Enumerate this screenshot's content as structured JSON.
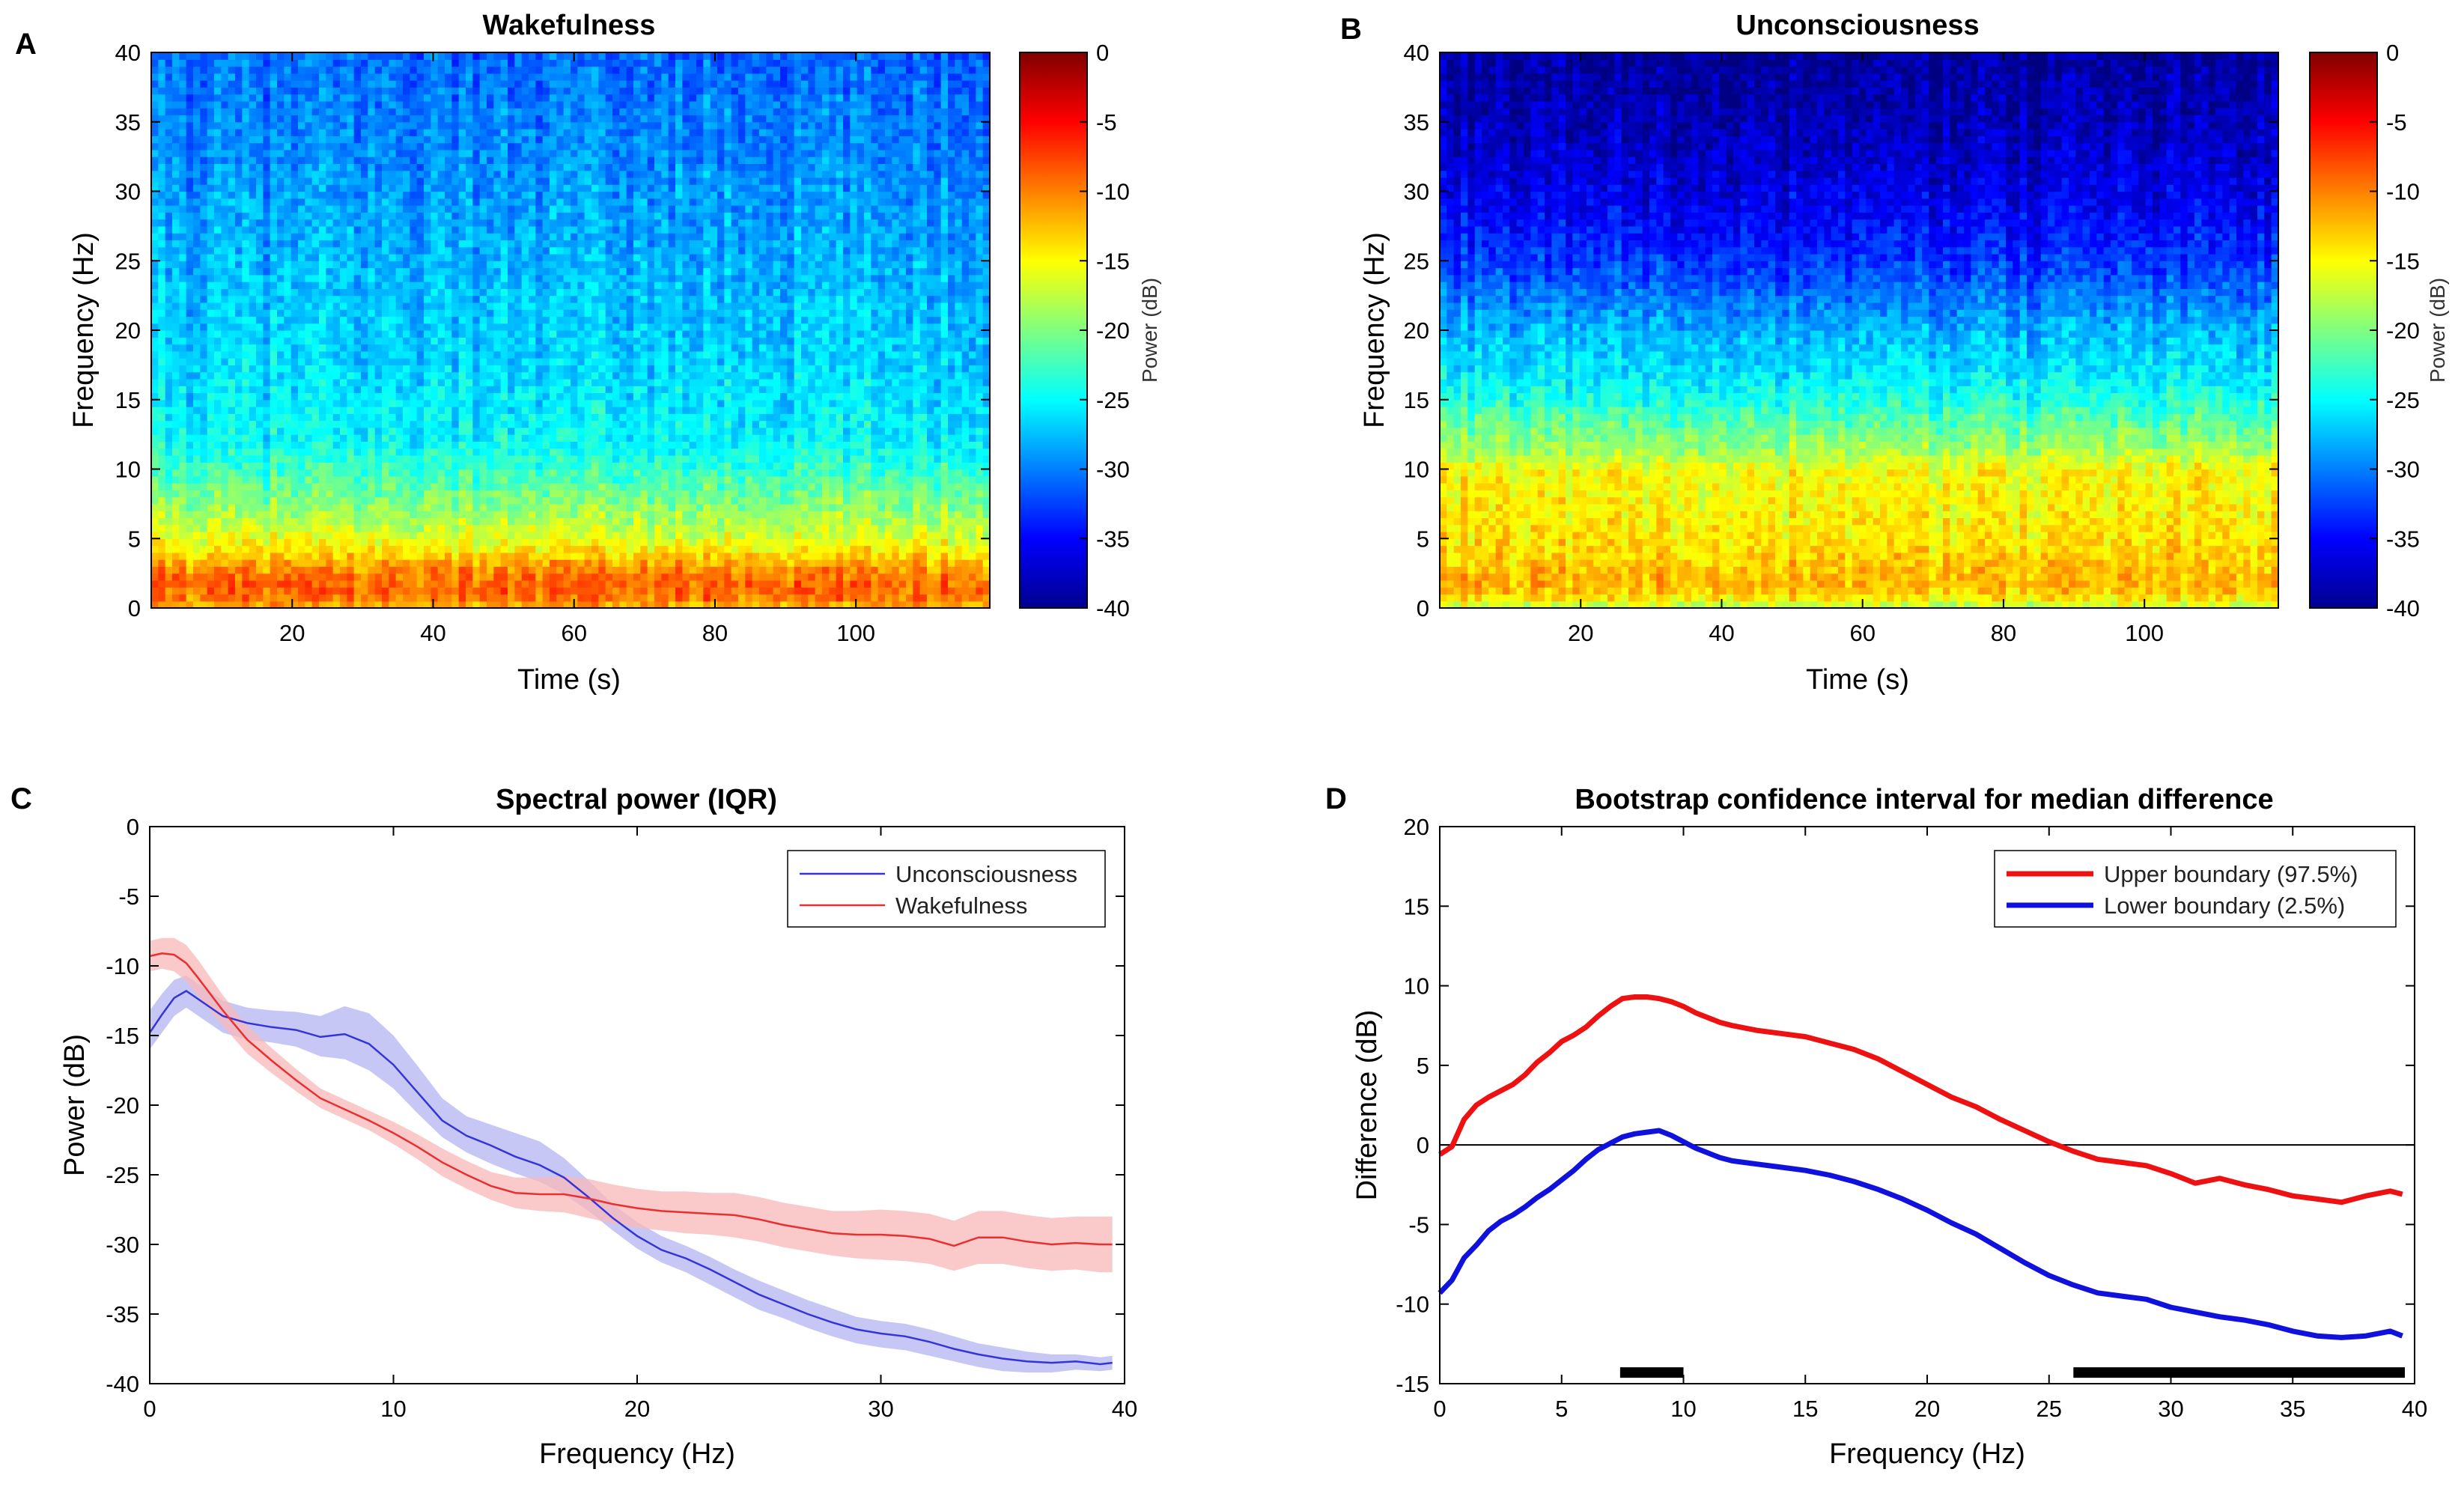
{
  "panels": {
    "A": {
      "letter": "A"
    },
    "B": {
      "letter": "B"
    },
    "C": {
      "letter": "C"
    },
    "D": {
      "letter": "D"
    }
  },
  "chart_data": [
    {
      "panel": "A",
      "type": "heatmap",
      "title": "Wakefulness",
      "xlabel": "Time (s)",
      "ylabel": "Frequency (Hz)",
      "xlim": [
        0,
        119
      ],
      "ylim": [
        0,
        40
      ],
      "xticks": [
        20,
        40,
        60,
        80,
        100
      ],
      "yticks": [
        0,
        5,
        10,
        15,
        20,
        25,
        30,
        35,
        40
      ],
      "colorbar": {
        "label": "Power (dB)",
        "range": [
          -40,
          0
        ],
        "ticks": [
          0,
          -5,
          -10,
          -15,
          -20,
          -25,
          -30,
          -35,
          -40
        ],
        "colormap": "jet"
      },
      "mean_power_profile_db": {
        "frequency_hz": [
          0,
          1,
          2,
          3,
          4,
          5,
          7,
          10,
          12,
          15,
          20,
          25,
          30,
          35,
          40
        ],
        "power_db": [
          -12,
          -9,
          -9,
          -11,
          -14,
          -16,
          -19,
          -23,
          -25,
          -26,
          -27,
          -28,
          -29,
          -30,
          -31
        ]
      }
    },
    {
      "panel": "B",
      "type": "heatmap",
      "title": "Unconsciousness",
      "xlabel": "Time (s)",
      "ylabel": "Frequency (Hz)",
      "xlim": [
        0,
        119
      ],
      "ylim": [
        0,
        40
      ],
      "xticks": [
        20,
        40,
        60,
        80,
        100
      ],
      "yticks": [
        0,
        5,
        10,
        15,
        20,
        25,
        30,
        35,
        40
      ],
      "colorbar": {
        "label": "Power (dB)",
        "range": [
          -40,
          0
        ],
        "ticks": [
          0,
          -5,
          -10,
          -15,
          -20,
          -25,
          -30,
          -35,
          -40
        ],
        "colormap": "jet"
      },
      "mean_power_profile_db": {
        "frequency_hz": [
          0,
          1,
          2,
          3,
          5,
          8,
          10,
          11,
          13,
          15,
          17,
          20,
          23,
          25,
          28,
          30,
          35,
          40
        ],
        "power_db": [
          -18,
          -13,
          -12,
          -13,
          -14,
          -15,
          -15,
          -18,
          -21,
          -24,
          -26,
          -28,
          -31,
          -33,
          -35,
          -36,
          -38,
          -39
        ]
      }
    },
    {
      "panel": "C",
      "type": "line",
      "title": "Spectral power (IQR)",
      "xlabel": "Frequency (Hz)",
      "ylabel": "Power (dB)",
      "xlim": [
        0,
        40
      ],
      "ylim": [
        -40,
        0
      ],
      "xticks": [
        0,
        10,
        20,
        30,
        40
      ],
      "yticks": [
        0,
        -5,
        -10,
        -15,
        -20,
        -25,
        -30,
        -35,
        -40
      ],
      "legend": "top-right",
      "x": [
        0,
        0.5,
        1,
        1.5,
        2,
        3,
        4,
        5,
        6,
        7,
        8,
        9,
        10,
        11,
        12,
        13,
        14,
        15,
        16,
        17,
        18,
        19,
        20,
        21,
        22,
        23,
        24,
        25,
        26,
        27,
        28,
        29,
        30,
        31,
        32,
        33,
        34,
        35,
        36,
        37,
        38,
        39,
        39.5
      ],
      "series": [
        {
          "name": "Unconsciousness",
          "color": "#3434d8",
          "band_color": "#b4b4f2",
          "median": [
            -14.8,
            -13.5,
            -12.3,
            -11.8,
            -12.4,
            -13.6,
            -14.1,
            -14.4,
            -14.6,
            -15.1,
            -14.9,
            -15.6,
            -17.1,
            -19.1,
            -21.1,
            -22.2,
            -22.9,
            -23.7,
            -24.3,
            -25.2,
            -26.6,
            -28.1,
            -29.4,
            -30.4,
            -31.0,
            -31.8,
            -32.7,
            -33.6,
            -34.3,
            -35.0,
            -35.6,
            -36.1,
            -36.4,
            -36.6,
            -37.0,
            -37.5,
            -37.9,
            -38.2,
            -38.4,
            -38.5,
            -38.4,
            -38.6,
            -38.5
          ],
          "q1": [
            -16.0,
            -14.8,
            -13.6,
            -13.0,
            -13.6,
            -14.8,
            -15.3,
            -15.5,
            -15.8,
            -16.5,
            -16.7,
            -17.5,
            -18.8,
            -20.6,
            -22.3,
            -23.4,
            -24.2,
            -24.9,
            -25.5,
            -26.4,
            -27.6,
            -29.0,
            -30.3,
            -31.3,
            -32.0,
            -32.9,
            -33.8,
            -34.7,
            -35.3,
            -36.0,
            -36.6,
            -37.1,
            -37.4,
            -37.6,
            -38.0,
            -38.4,
            -38.8,
            -39.1,
            -39.2,
            -39.2,
            -39.0,
            -39.1,
            -39.0
          ],
          "q3": [
            -13.2,
            -12.0,
            -11.0,
            -10.7,
            -11.3,
            -12.5,
            -13.0,
            -13.2,
            -13.3,
            -13.6,
            -12.9,
            -13.4,
            -15.0,
            -17.2,
            -19.5,
            -20.8,
            -21.4,
            -22.0,
            -22.6,
            -23.8,
            -25.4,
            -27.1,
            -28.4,
            -29.4,
            -30.1,
            -30.9,
            -31.8,
            -32.6,
            -33.3,
            -34.0,
            -34.6,
            -35.2,
            -35.5,
            -35.7,
            -36.1,
            -36.6,
            -37.1,
            -37.4,
            -37.7,
            -37.9,
            -37.9,
            -38.1,
            -38.0
          ]
        },
        {
          "name": "Wakefulness",
          "color": "#e83030",
          "band_color": "#f8b8b8",
          "median": [
            -9.3,
            -9.1,
            -9.2,
            -9.8,
            -10.9,
            -13.2,
            -15.3,
            -16.8,
            -18.2,
            -19.5,
            -20.3,
            -21.1,
            -22.0,
            -23.0,
            -24.1,
            -25.0,
            -25.8,
            -26.3,
            -26.4,
            -26.4,
            -26.7,
            -27.1,
            -27.4,
            -27.6,
            -27.7,
            -27.8,
            -27.9,
            -28.2,
            -28.6,
            -28.9,
            -29.2,
            -29.3,
            -29.3,
            -29.4,
            -29.6,
            -30.1,
            -29.5,
            -29.5,
            -29.8,
            -30.0,
            -29.9,
            -30.0,
            -30.0
          ],
          "q1": [
            -10.4,
            -10.2,
            -10.4,
            -11.1,
            -12.2,
            -14.3,
            -16.3,
            -17.7,
            -19.0,
            -20.2,
            -21.0,
            -21.8,
            -22.8,
            -23.9,
            -25.1,
            -26.0,
            -26.8,
            -27.4,
            -27.6,
            -27.7,
            -28.1,
            -28.5,
            -28.8,
            -29.0,
            -29.2,
            -29.3,
            -29.5,
            -29.8,
            -30.2,
            -30.5,
            -30.8,
            -31.0,
            -31.1,
            -31.2,
            -31.4,
            -31.9,
            -31.4,
            -31.4,
            -31.7,
            -31.9,
            -31.8,
            -32.0,
            -32.0
          ],
          "q3": [
            -8.2,
            -8.0,
            -8.0,
            -8.5,
            -9.6,
            -12.1,
            -14.3,
            -15.9,
            -17.4,
            -18.8,
            -19.6,
            -20.4,
            -21.2,
            -22.1,
            -23.1,
            -24.0,
            -24.8,
            -25.2,
            -25.2,
            -25.1,
            -25.3,
            -25.7,
            -26.0,
            -26.2,
            -26.2,
            -26.3,
            -26.3,
            -26.6,
            -27.0,
            -27.3,
            -27.6,
            -27.6,
            -27.5,
            -27.6,
            -27.8,
            -28.3,
            -27.6,
            -27.6,
            -27.9,
            -28.1,
            -28.0,
            -28.0,
            -28.0
          ]
        }
      ]
    },
    {
      "panel": "D",
      "type": "line",
      "title": "Bootstrap confidence interval for median difference",
      "xlabel": "Frequency (Hz)",
      "ylabel": "Difference (dB)",
      "xlim": [
        0,
        40
      ],
      "ylim": [
        -15,
        20
      ],
      "xticks": [
        0,
        5,
        10,
        15,
        20,
        25,
        30,
        35,
        40
      ],
      "yticks": [
        20,
        15,
        10,
        5,
        0,
        -5,
        -10,
        -15
      ],
      "legend": "top-right",
      "reference_line_y": 0,
      "x": [
        0,
        0.5,
        1,
        1.5,
        2,
        2.5,
        3,
        3.5,
        4,
        4.5,
        5,
        5.5,
        6,
        6.5,
        7,
        7.5,
        8,
        8.5,
        9,
        9.5,
        10,
        10.5,
        11,
        11.5,
        12,
        13,
        14,
        15,
        16,
        17,
        18,
        19,
        20,
        21,
        22,
        23,
        24,
        25,
        26,
        27,
        28,
        29,
        30,
        31,
        32,
        33,
        34,
        35,
        36,
        37,
        38,
        39,
        39.5
      ],
      "series": [
        {
          "name": "Upper boundary (97.5%)",
          "color": "#ee1111",
          "values": [
            -0.6,
            -0.1,
            1.6,
            2.5,
            3.0,
            3.4,
            3.8,
            4.4,
            5.2,
            5.8,
            6.5,
            6.9,
            7.4,
            8.1,
            8.7,
            9.2,
            9.3,
            9.3,
            9.2,
            9.0,
            8.7,
            8.3,
            8.0,
            7.7,
            7.5,
            7.2,
            7.0,
            6.8,
            6.4,
            6.0,
            5.4,
            4.6,
            3.8,
            3.0,
            2.4,
            1.6,
            0.9,
            0.2,
            -0.4,
            -0.9,
            -1.1,
            -1.3,
            -1.8,
            -2.4,
            -2.1,
            -2.5,
            -2.8,
            -3.2,
            -3.4,
            -3.6,
            -3.2,
            -2.9,
            -3.1
          ]
        },
        {
          "name": "Lower boundary (2.5%)",
          "color": "#1111dd",
          "values": [
            -9.3,
            -8.5,
            -7.1,
            -6.3,
            -5.4,
            -4.8,
            -4.4,
            -3.9,
            -3.3,
            -2.8,
            -2.2,
            -1.6,
            -0.9,
            -0.3,
            0.1,
            0.5,
            0.7,
            0.8,
            0.9,
            0.6,
            0.2,
            -0.2,
            -0.5,
            -0.8,
            -1.0,
            -1.2,
            -1.4,
            -1.6,
            -1.9,
            -2.3,
            -2.8,
            -3.4,
            -4.1,
            -4.9,
            -5.6,
            -6.5,
            -7.4,
            -8.2,
            -8.8,
            -9.3,
            -9.5,
            -9.7,
            -10.2,
            -10.5,
            -10.8,
            -11.0,
            -11.3,
            -11.7,
            -12.0,
            -12.1,
            -12.0,
            -11.7,
            -12.0
          ]
        }
      ],
      "significance_bars_hz": [
        [
          7.4,
          10.0
        ],
        [
          26.0,
          39.6
        ]
      ]
    }
  ]
}
